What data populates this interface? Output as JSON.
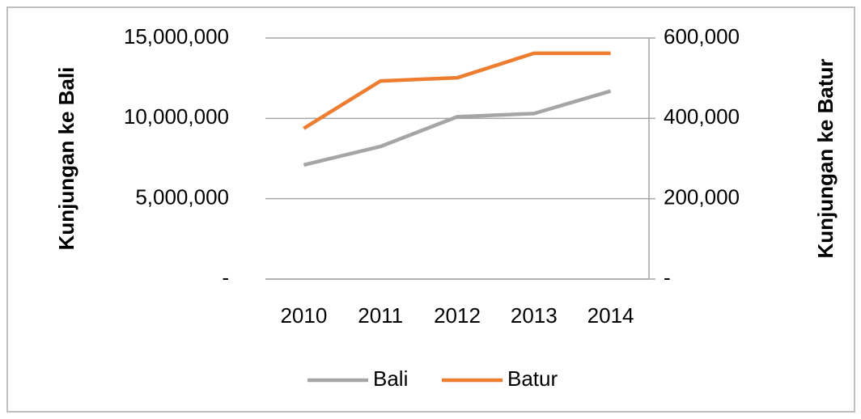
{
  "chart_data": {
    "type": "line",
    "categories": [
      "2010",
      "2011",
      "2012",
      "2013",
      "2014"
    ],
    "series": [
      {
        "name": "Bali",
        "color": "#a5a5a5",
        "values": [
          7100000,
          8250000,
          10100000,
          10300000,
          11700000
        ]
      },
      {
        "name": "Batur",
        "color": "#ed7d31",
        "axis": "y2",
        "values": [
          375000,
          493000,
          501000,
          562000,
          562000
        ]
      }
    ],
    "ylabel": "Kunjungan ke Bali",
    "y2label": "Kunjungan ke Batur",
    "ylim": [
      0,
      15000000
    ],
    "yticks": [
      {
        "value": 0,
        "label": "-"
      },
      {
        "value": 5000000,
        "label": "5,000,000"
      },
      {
        "value": 10000000,
        "label": "10,000,000"
      },
      {
        "value": 15000000,
        "label": "15,000,000"
      }
    ],
    "y2lim": [
      0,
      600000
    ],
    "y2ticks": [
      {
        "value": 0,
        "label": "-"
      },
      {
        "value": 200000,
        "label": "200,000"
      },
      {
        "value": 400000,
        "label": "400,000"
      },
      {
        "value": 600000,
        "label": "600,000"
      }
    ],
    "grid": true,
    "legend": "bottom"
  }
}
